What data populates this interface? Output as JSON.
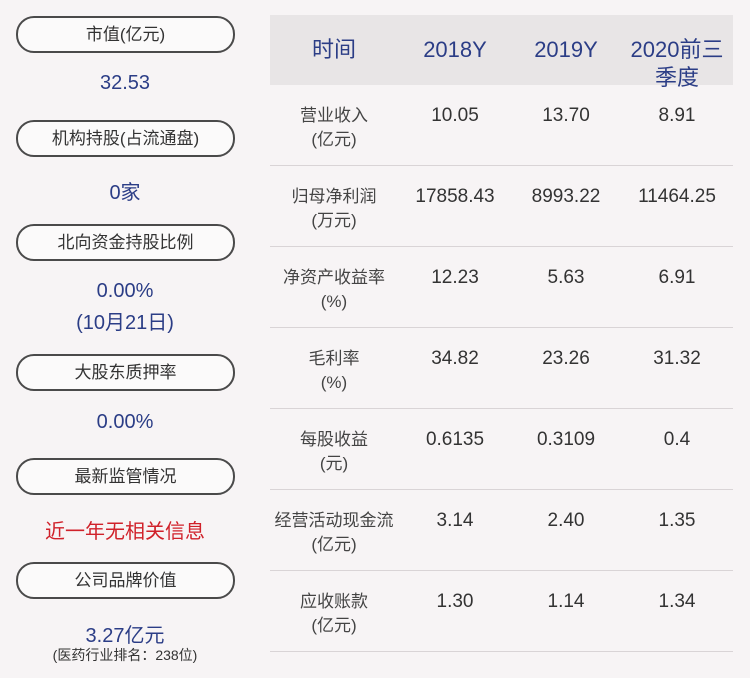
{
  "left_panel": [
    {
      "label": "市值(亿元)",
      "value": "32.53"
    },
    {
      "label": "机构持股(占流通盘)",
      "value": "0家"
    },
    {
      "label": "北向资金持股比例",
      "value": "0.00%",
      "note": "(10月21日)"
    },
    {
      "label": "大股东质押率",
      "value": "0.00%"
    },
    {
      "label": "最新监管情况",
      "value": "近一年无相关信息"
    },
    {
      "label": "公司品牌价值",
      "value": "3.27亿元",
      "note": "(医药行业排名：238位)"
    }
  ],
  "table": {
    "header": [
      "时间",
      "2018Y",
      "2019Y",
      "2020前三季度"
    ],
    "rows": [
      [
        [
          "营业收入",
          "(亿元)"
        ],
        "10.05",
        "13.70",
        "8.91"
      ],
      [
        [
          "归母净利润",
          "(万元)"
        ],
        "17858.43",
        "8993.22",
        "11464.25"
      ],
      [
        [
          "净资产收益率",
          "(%)"
        ],
        "12.23",
        "5.63",
        "6.91"
      ],
      [
        [
          "毛利率",
          "(%)"
        ],
        "34.82",
        "23.26",
        "31.32"
      ],
      [
        [
          "每股收益",
          "(元)"
        ],
        "0.6135",
        "0.3109",
        "0.4"
      ],
      [
        [
          "经营活动现金流",
          "(亿元)"
        ],
        "3.14",
        "2.40",
        "1.35"
      ],
      [
        [
          "应收账款",
          "(亿元)"
        ],
        "1.30",
        "1.14",
        "1.34"
      ]
    ]
  }
}
